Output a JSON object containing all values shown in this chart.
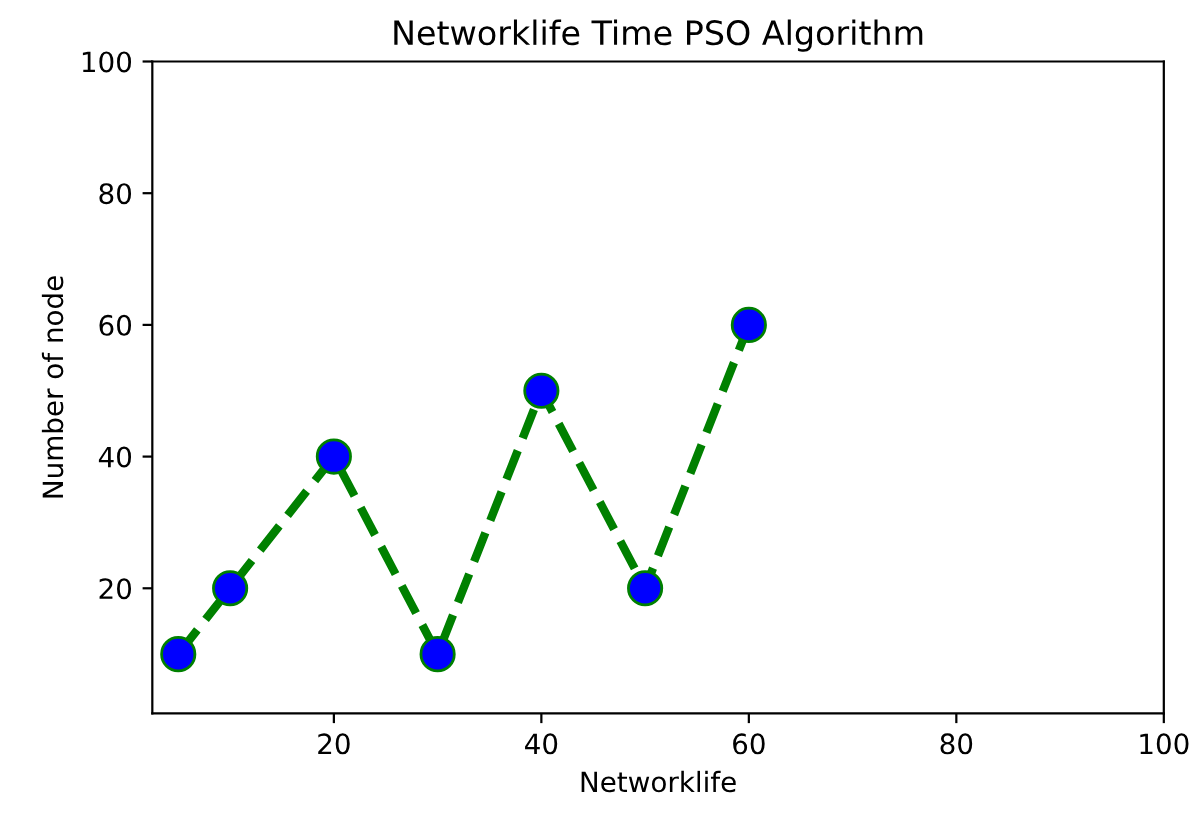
{
  "chart_data": {
    "type": "line",
    "title": "Networklife Time PSO Algorithm",
    "xlabel": "Networklife",
    "ylabel": "Number of node",
    "x": [
      5,
      10,
      20,
      30,
      40,
      50,
      60
    ],
    "series": [
      {
        "color": "#008000",
        "colors": [
          "#0000ff",
          "#0000ff",
          "#0000ff",
          "#0000ff",
          "#0000ff",
          "#0000ff",
          "#0000ff"
        ],
        "values": [
          10,
          20,
          40,
          10,
          50,
          20,
          60
        ]
      }
    ],
    "marker": "circle",
    "line_style": "dashed",
    "xlim": [
      2.5,
      100
    ],
    "ylim": [
      1,
      100
    ],
    "xticks": [
      20,
      40,
      60,
      80,
      100
    ],
    "yticks": [
      20,
      40,
      60,
      80,
      100
    ],
    "grid": false,
    "legend": false
  }
}
